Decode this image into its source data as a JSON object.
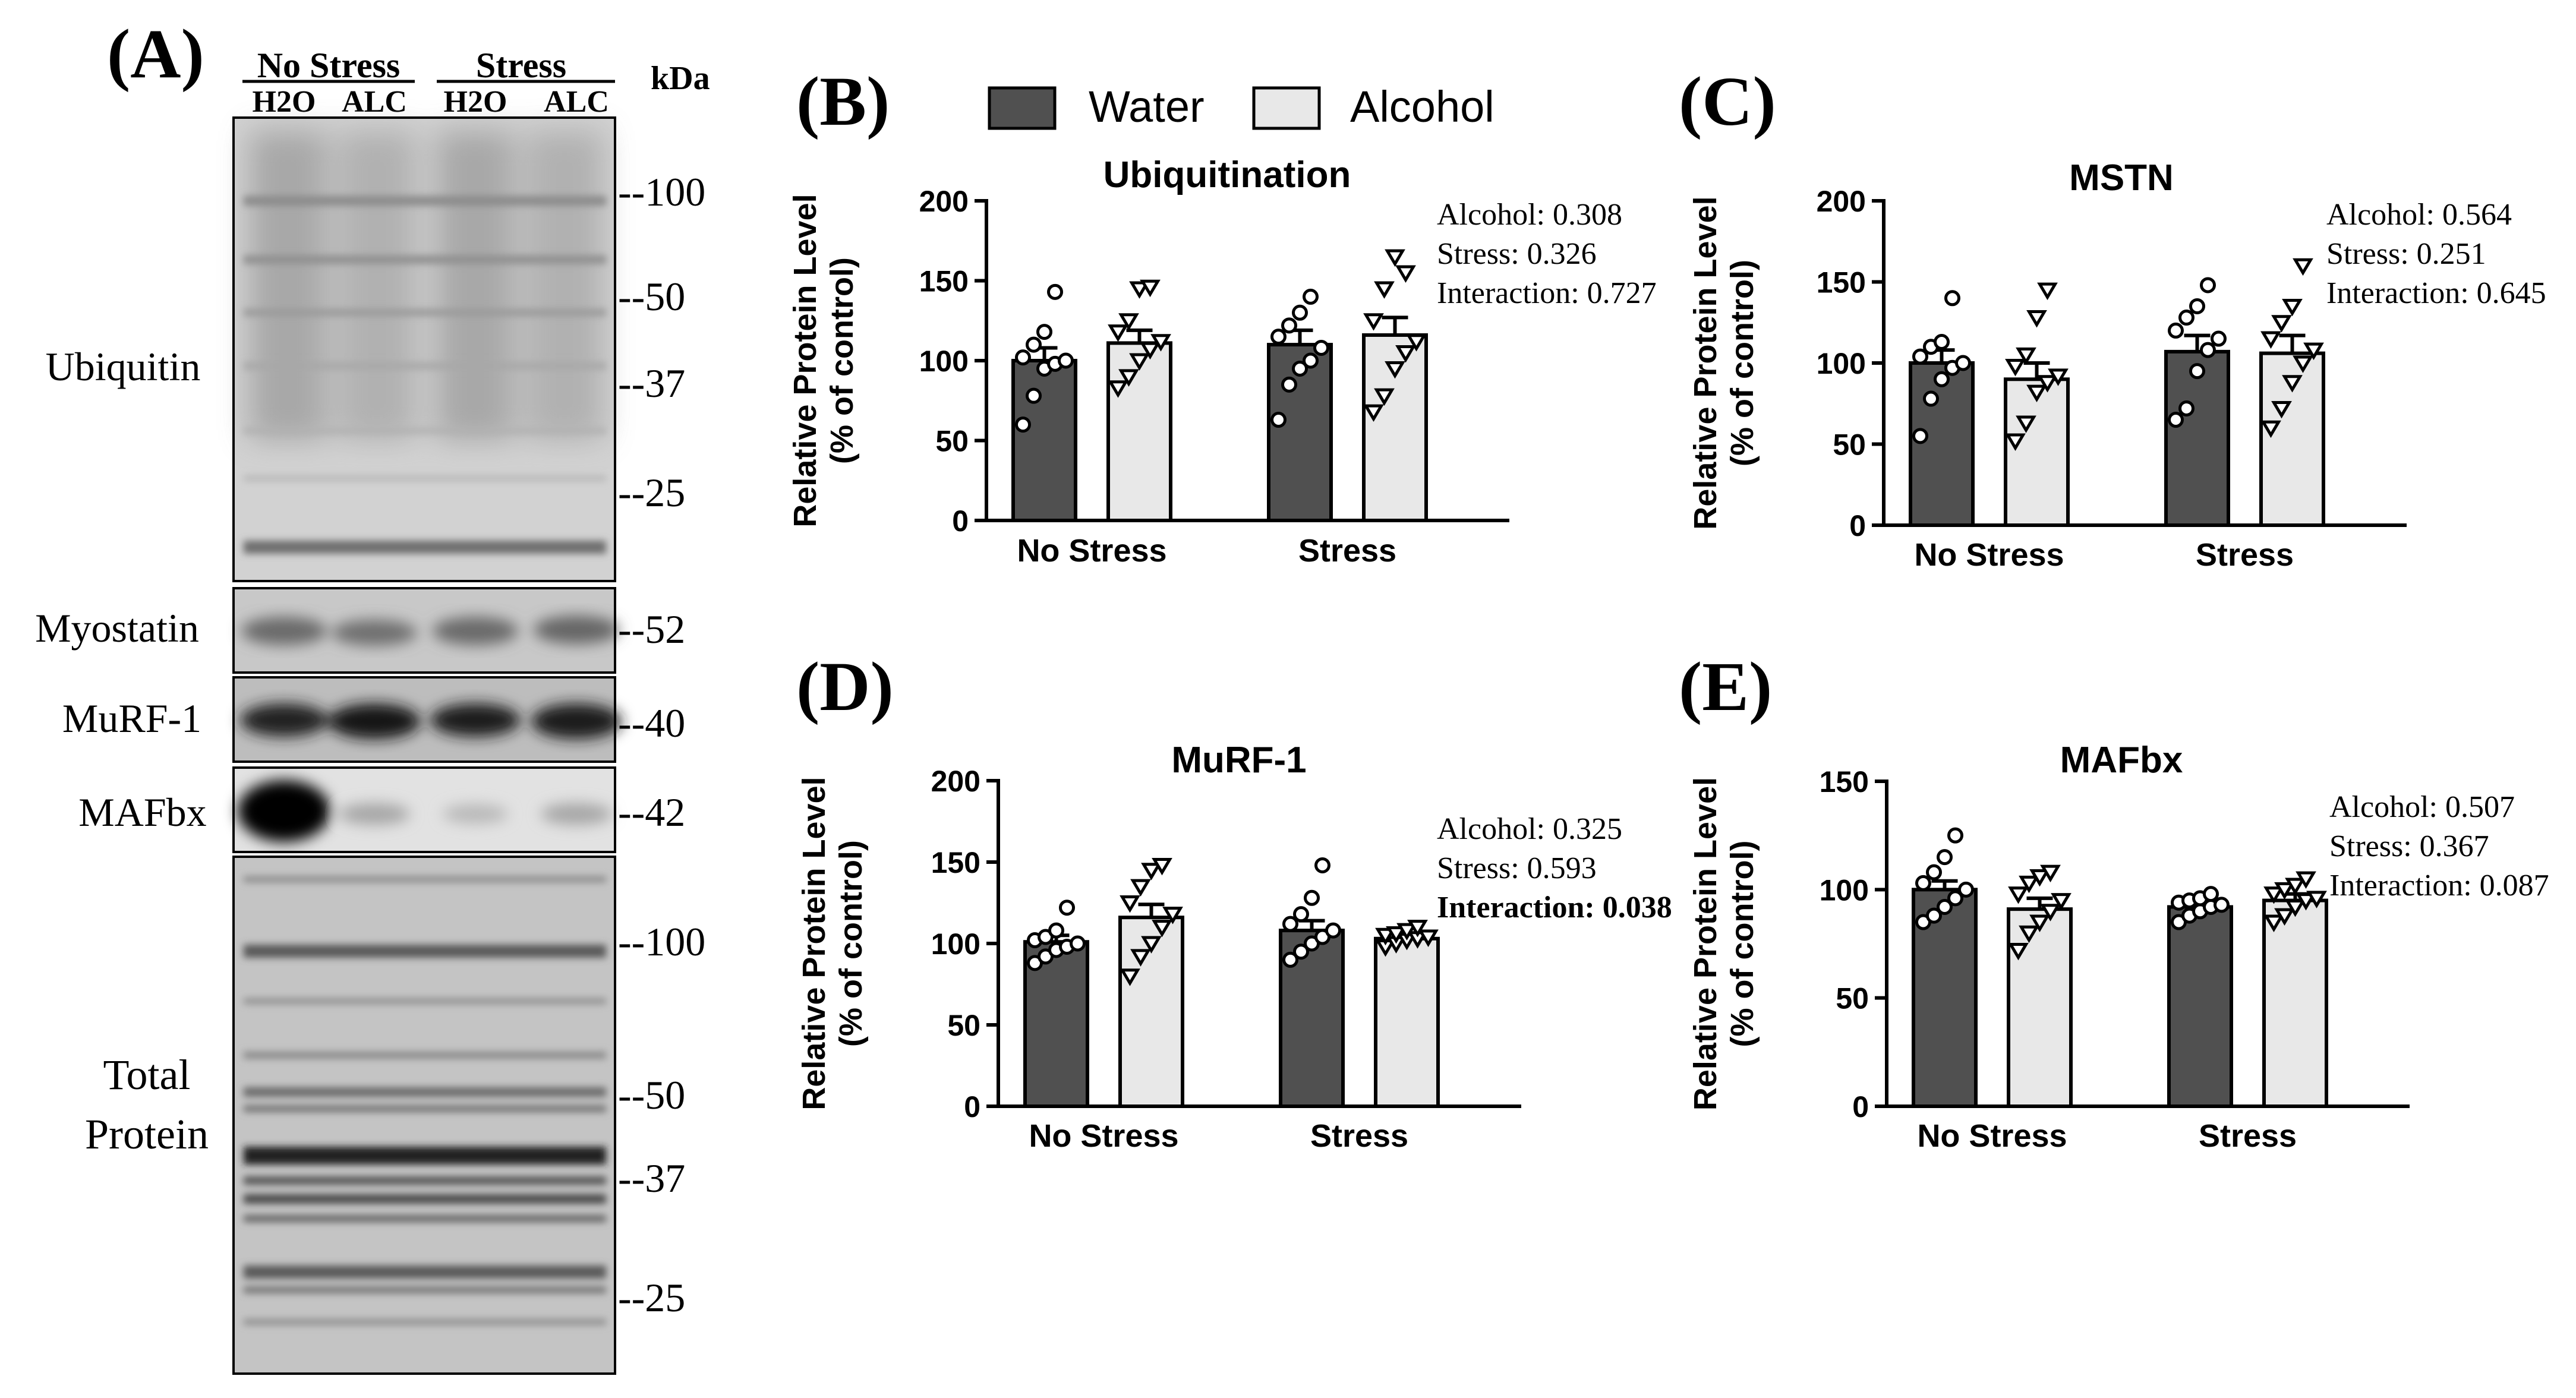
{
  "colors": {
    "water": "#505050",
    "alcohol": "#e8e8e8",
    "ink": "#000000"
  },
  "legend": {
    "water": "Water",
    "alcohol": "Alcohol"
  },
  "blot": {
    "panel_label": "(A)",
    "group_no_stress": "No Stress",
    "group_stress": "Stress",
    "lanes": [
      "H2O",
      "ALC",
      "H2O",
      "ALC"
    ],
    "kda_label": "kDa",
    "ubiquitin": {
      "label": "Ubiquitin",
      "markers": [
        "--100",
        "--50",
        "--37",
        "--25"
      ]
    },
    "myostatin": {
      "label": "Myostatin",
      "marker": "--52"
    },
    "murf1": {
      "label": "MuRF-1",
      "marker": "--40"
    },
    "mafbx": {
      "label": "MAFbx",
      "marker": "--42"
    },
    "total": {
      "label_line1": "Total",
      "label_line2": "Protein",
      "markers": [
        "--100",
        "--50",
        "--37",
        "--25"
      ]
    }
  },
  "chart_data": [
    {
      "panel": "(B)",
      "type": "bar",
      "title": "Ubiquitination",
      "ylabel_line1": "Relative Protein Level",
      "ylabel_line2": "(% of control)",
      "ylim": [
        0,
        200
      ],
      "yticks": [
        0,
        50,
        100,
        150,
        200
      ],
      "categories": [
        "No Stress",
        "Stress"
      ],
      "series": [
        {
          "name": "Water",
          "values": [
            100,
            110
          ],
          "sem": [
            8,
            9
          ],
          "points": [
            [
              60,
              78,
              95,
              98,
              100,
              102,
              110,
              118,
              143
            ],
            [
              63,
              85,
              95,
              100,
              108,
              115,
              122,
              130,
              140
            ]
          ]
        },
        {
          "name": "Alcohol",
          "values": [
            111,
            116
          ],
          "sem": [
            8,
            11
          ],
          "points": [
            [
              83,
              90,
              100,
              107,
              112,
              118,
              125,
              145,
              146
            ],
            [
              68,
              78,
              95,
              105,
              112,
              125,
              145,
              165,
              155
            ]
          ]
        }
      ],
      "stats": [
        {
          "text": "Alcohol: 0.308",
          "bold": false
        },
        {
          "text": "Stress: 0.326",
          "bold": false
        },
        {
          "text": "Interaction: 0.727",
          "bold": false
        }
      ]
    },
    {
      "panel": "(C)",
      "type": "bar",
      "title": "MSTN",
      "ylabel_line1": "Relative Protein Level",
      "ylabel_line2": "(% of control)",
      "ylim": [
        0,
        200
      ],
      "yticks": [
        0,
        50,
        100,
        150,
        200
      ],
      "categories": [
        "No Stress",
        "Stress"
      ],
      "series": [
        {
          "name": "Water",
          "values": [
            100,
            107
          ],
          "sem": [
            8,
            10
          ],
          "points": [
            [
              55,
              78,
              90,
              97,
              100,
              104,
              110,
              113,
              140
            ],
            [
              65,
              72,
              95,
              108,
              115,
              120,
              128,
              135,
              148
            ]
          ]
        },
        {
          "name": "Alcohol",
          "values": [
            90,
            106
          ],
          "sem": [
            10,
            11
          ],
          "points": [
            [
              52,
              63,
              82,
              88,
              92,
              98,
              105,
              128,
              145
            ],
            [
              60,
              72,
              88,
              100,
              108,
              115,
              125,
              135,
              160
            ]
          ]
        }
      ],
      "stats": [
        {
          "text": "Alcohol: 0.564",
          "bold": false
        },
        {
          "text": "Stress: 0.251",
          "bold": false
        },
        {
          "text": "Interaction: 0.645",
          "bold": false
        }
      ]
    },
    {
      "panel": "(D)",
      "type": "bar",
      "title": "MuRF-1",
      "ylabel_line1": "Relative Protein Level",
      "ylabel_line2": "(% of control)",
      "ylim": [
        0,
        200
      ],
      "yticks": [
        0,
        50,
        100,
        150,
        200
      ],
      "categories": [
        "No Stress",
        "Stress"
      ],
      "series": [
        {
          "name": "Water",
          "values": [
            101,
            108
          ],
          "sem": [
            4,
            6
          ],
          "points": [
            [
              88,
              92,
              96,
              98,
              100,
              102,
              104,
              108,
              122
            ],
            [
              90,
              95,
              100,
              104,
              108,
              112,
              118,
              128,
              148
            ]
          ]
        },
        {
          "name": "Alcohol",
          "values": [
            116,
            103
          ],
          "sem": [
            8,
            3
          ],
          "points": [
            [
              80,
              92,
              100,
              110,
              118,
              125,
              135,
              145,
              148
            ],
            [
              98,
              100,
              102,
              103,
              104,
              105,
              106,
              108,
              110
            ]
          ]
        }
      ],
      "stats": [
        {
          "text": "Alcohol: 0.325",
          "bold": false
        },
        {
          "text": "Stress: 0.593",
          "bold": false
        },
        {
          "text": "Interaction: 0.038",
          "bold": true
        }
      ]
    },
    {
      "panel": "(E)",
      "type": "bar",
      "title": "MAFbx",
      "ylabel_line1": "Relative Protein Level",
      "ylabel_line2": "(% of control)",
      "ylim": [
        0,
        150
      ],
      "yticks": [
        0,
        50,
        100,
        150
      ],
      "categories": [
        "No Stress",
        "Stress"
      ],
      "series": [
        {
          "name": "Water",
          "values": [
            100,
            92
          ],
          "sem": [
            4,
            2
          ],
          "points": [
            [
              85,
              88,
              92,
              96,
              100,
              103,
              108,
              115,
              125
            ],
            [
              85,
              88,
              90,
              92,
              93,
              94,
              95,
              96,
              98
            ]
          ]
        },
        {
          "name": "Alcohol",
          "values": [
            91,
            95
          ],
          "sem": [
            5,
            3
          ],
          "points": [
            [
              72,
              80,
              85,
              90,
              95,
              98,
              103,
              106,
              108
            ],
            [
              85,
              88,
              92,
              95,
              96,
              98,
              100,
              102,
              105
            ]
          ]
        }
      ],
      "stats": [
        {
          "text": "Alcohol: 0.507",
          "bold": false
        },
        {
          "text": "Stress: 0.367",
          "bold": false
        },
        {
          "text": "Interaction: 0.087",
          "bold": false
        }
      ]
    }
  ]
}
